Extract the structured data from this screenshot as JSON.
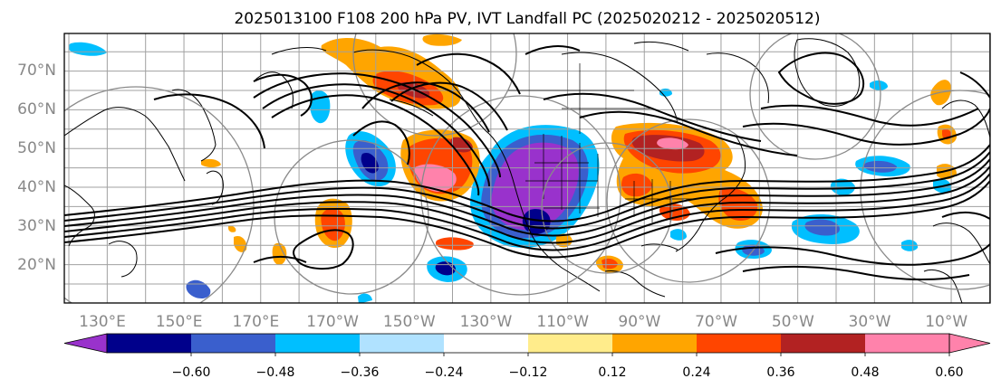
{
  "title": "2025013100 F108 200 hPa PV, IVT Landfall PC (2025020212 - 2025020512)",
  "map": {
    "lon_labels": [
      "130°E",
      "150°E",
      "170°E",
      "170°W",
      "150°W",
      "130°W",
      "110°W",
      "90°W",
      "70°W",
      "50°W",
      "30°W",
      "10°W"
    ],
    "lat_labels": [
      "70°N",
      "60°N",
      "50°N",
      "40°N",
      "30°N",
      "20°N"
    ],
    "grid_color": "#a0a0a0",
    "coast_color": "#000000"
  },
  "colorbar": {
    "ticks": [
      "−0.60",
      "−0.48",
      "−0.36",
      "−0.24",
      "−0.12",
      "0.12",
      "0.24",
      "0.36",
      "0.48",
      "0.60"
    ],
    "colors": [
      "#9932cc",
      "#00008b",
      "#3a5fcd",
      "#00bfff",
      "#b0e2ff",
      "#ffffff",
      "#ffec8b",
      "#ffa500",
      "#ff4500",
      "#b22222",
      "#ff82ab",
      "#ff82ab"
    ]
  },
  "anomaly_colors": {
    "purple": "#9932cc",
    "navy": "#00008b",
    "royal": "#3a5fcd",
    "sky": "#00bfff",
    "light": "#b0e2ff",
    "yellow": "#ffec8b",
    "orange": "#ffa500",
    "red": "#ff4500",
    "brick": "#b22222",
    "pink": "#ff82ab"
  }
}
